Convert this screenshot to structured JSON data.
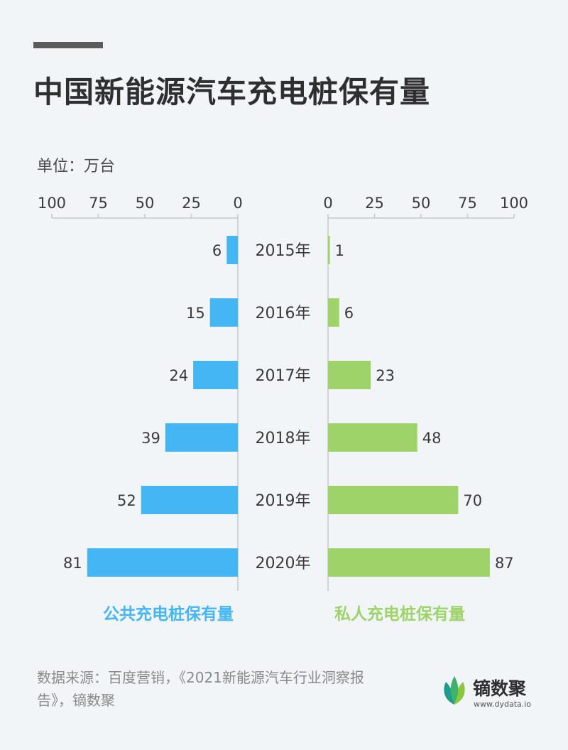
{
  "header": {
    "title": "中国新能源汽车充电桩保有量",
    "unit": "单位：万台"
  },
  "chart_data": {
    "type": "bar",
    "orientation": "horizontal",
    "layout": "butterfly",
    "categories": [
      "2015年",
      "2016年",
      "2017年",
      "2018年",
      "2019年",
      "2020年"
    ],
    "xlim": [
      0,
      100
    ],
    "ticks": [
      0,
      25,
      50,
      75,
      100
    ],
    "grid": false,
    "series": [
      {
        "name": "公共充电桩保有量",
        "side": "left",
        "color": "#44b6f4",
        "values": [
          6,
          15,
          24,
          39,
          52,
          81
        ]
      },
      {
        "name": "私人充电桩保有量",
        "side": "right",
        "color": "#9ed36a",
        "values": [
          1,
          6,
          23,
          48,
          70,
          87
        ]
      }
    ]
  },
  "footer": {
    "source": "数据来源：百度营销，《2021新能源汽车行业洞察报告》，镝数聚",
    "brand_name": "镝数聚",
    "brand_url": "www.dydata.io"
  },
  "colors": {
    "public": "#44b6f4",
    "private": "#9ed36a",
    "axis": "#c8c8c8",
    "text": "#3a3a3a"
  }
}
